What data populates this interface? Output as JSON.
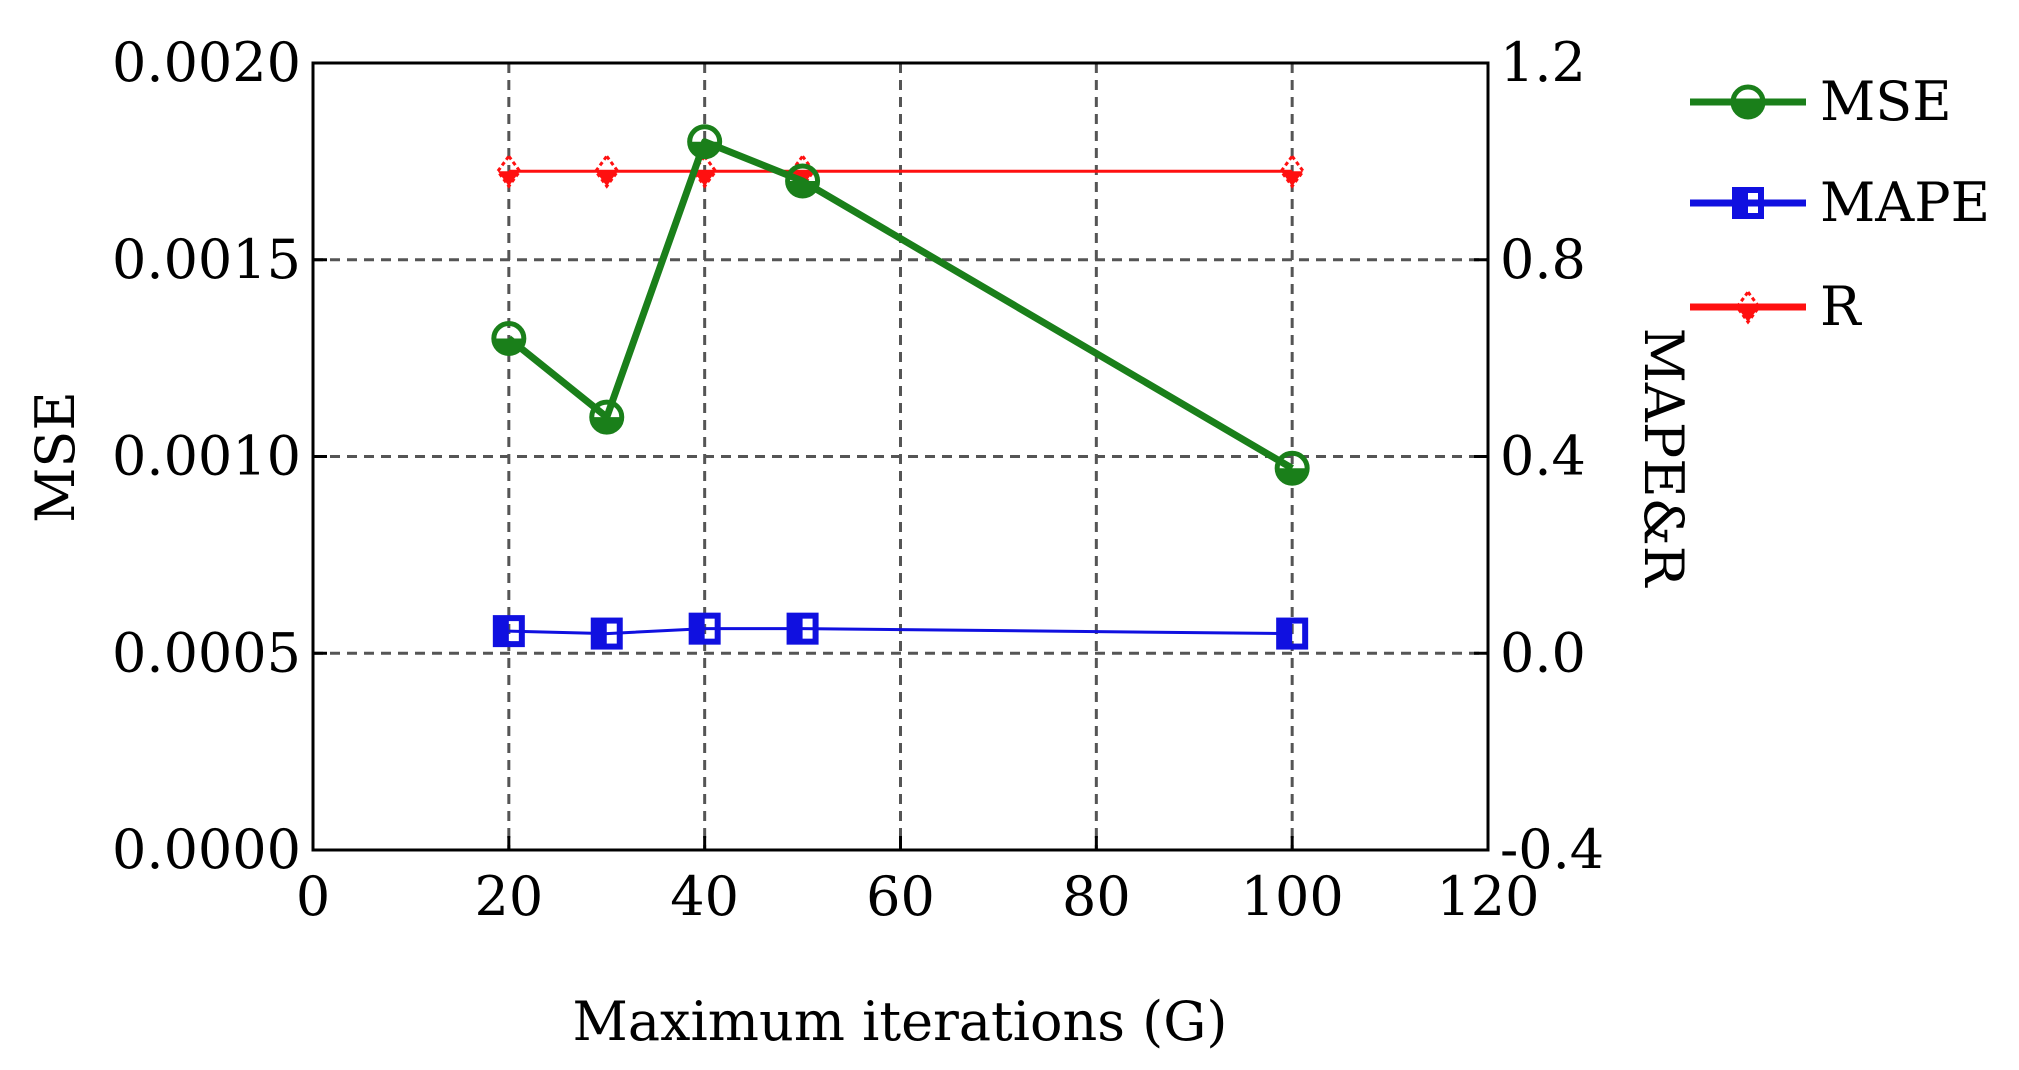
{
  "chart_data": {
    "type": "line",
    "xlabel": "Maximum  iterations (G)",
    "ylabel_left": "MSE",
    "ylabel_right": "MAPE&R",
    "xlim": [
      0,
      120
    ],
    "ylim_left": [
      0.0,
      0.002
    ],
    "ylim_right": [
      -0.4,
      1.2
    ],
    "x_ticks": [
      0,
      20,
      40,
      60,
      80,
      100,
      120
    ],
    "x_tick_labels": [
      "0",
      "20",
      "40",
      "60",
      "80",
      "100",
      "120"
    ],
    "y_left_ticks": [
      0.0,
      0.0005,
      0.001,
      0.0015,
      0.002
    ],
    "y_left_tick_labels": [
      "0.0000",
      "0.0005",
      "0.0010",
      "0.0015",
      "0.0020"
    ],
    "y_right_ticks": [
      -0.4,
      0.0,
      0.4,
      0.8,
      1.2
    ],
    "y_right_tick_labels": [
      "-0.4",
      "0.0",
      "0.4",
      "0.8",
      "1.2"
    ],
    "grid": true,
    "legend_position": "outside-top-right",
    "x": [
      20,
      30,
      40,
      50,
      100
    ],
    "series": [
      {
        "name": "MSE",
        "axis": "left",
        "color": "#1a7f1a",
        "marker": "circle",
        "values": [
          0.0013,
          0.0011,
          0.0018,
          0.0017,
          0.00097
        ]
      },
      {
        "name": "MAPE",
        "axis": "right",
        "color": "#1010e0",
        "marker": "square",
        "values": [
          0.045,
          0.04,
          0.05,
          0.05,
          0.04
        ]
      },
      {
        "name": "R",
        "axis": "right",
        "color": "#ff1010",
        "marker": "diamond",
        "values": [
          0.98,
          0.98,
          0.98,
          0.98,
          0.98
        ]
      }
    ]
  }
}
